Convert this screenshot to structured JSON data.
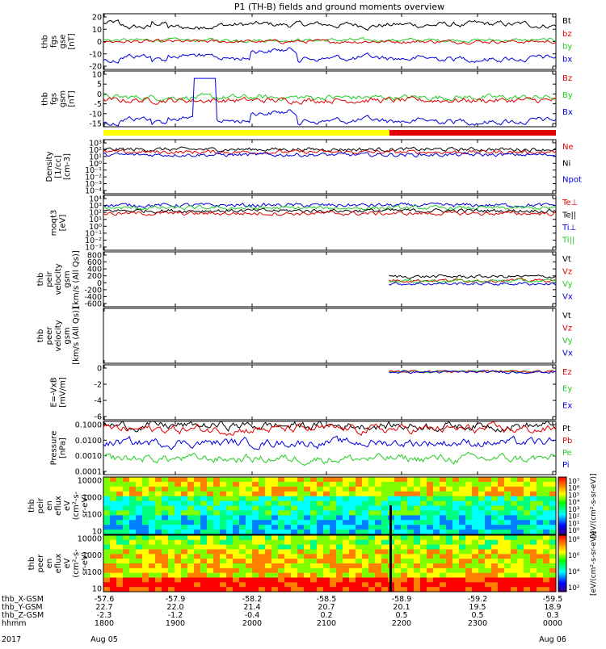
{
  "title": "P1 (TH-B) fields and ground moments overview",
  "colors": {
    "black": "#000000",
    "red": "#e00000",
    "green": "#22cc22",
    "blue": "#0000dd",
    "yellow": "#ffff00"
  },
  "chart_data": {
    "type": "line",
    "time_ticks": [
      "1800",
      "1900",
      "2000",
      "2100",
      "2200",
      "2300",
      "0000"
    ],
    "date_labels": [
      "Aug 05",
      "Aug 06"
    ],
    "year": "2017",
    "orbit_table": {
      "rows": [
        {
          "label": "thb_X-GSM",
          "values": [
            "-57.6",
            "-57.9",
            "-58.2",
            "-58.5",
            "-58.9",
            "-59.2",
            "-59.5"
          ]
        },
        {
          "label": "thb_Y-GSM",
          "values": [
            "22.7",
            "22.0",
            "21.4",
            "20.7",
            "20.1",
            "19.5",
            "18.9"
          ]
        },
        {
          "label": "thb_Z-GSM",
          "values": [
            "-2.3",
            "-1.2",
            "-0.4",
            "0.2",
            "0.5",
            "0.5",
            "0.3"
          ]
        },
        {
          "label": "hhmm",
          "values": [
            "1800",
            "1900",
            "2000",
            "2100",
            "2200",
            "2300",
            "0000"
          ]
        }
      ]
    },
    "panels": [
      {
        "id": "fgs-gse",
        "ylabel": [
          "thb",
          "fgs",
          "gse",
          "[nT]"
        ],
        "yticks": [
          "20",
          "10",
          "0",
          "-10",
          "-20"
        ],
        "ylim": [
          -20,
          20
        ],
        "legend": [
          {
            "name": "Bt",
            "color": "black"
          },
          {
            "name": "bz",
            "color": "red"
          },
          {
            "name": "by",
            "color": "green"
          },
          {
            "name": "bx",
            "color": "blue"
          }
        ]
      },
      {
        "id": "fgs-gsm",
        "ylabel": [
          "thb",
          "fgs",
          "gsm",
          "[nT]"
        ],
        "yticks": [
          "10",
          "5",
          "0",
          "-5",
          "-10",
          "-15"
        ],
        "ylim": [
          -18,
          20
        ],
        "legend": [
          {
            "name": "Bz",
            "color": "red"
          },
          {
            "name": "By",
            "color": "green"
          },
          {
            "name": "Bx",
            "color": "blue"
          }
        ]
      },
      {
        "id": "density",
        "ylabel": [
          "Density",
          "[1/cc]",
          "[cm-3]"
        ],
        "yticks": [
          "10³",
          "10²",
          "10¹",
          "10⁰",
          "10⁻¹",
          "10⁻²",
          "10⁻³",
          "10⁻⁴"
        ],
        "legend": [
          {
            "name": "Ne",
            "color": "red"
          },
          {
            "name": "Ni",
            "color": "black"
          },
          {
            "name": "Npot",
            "color": "blue"
          }
        ]
      },
      {
        "id": "temperature",
        "ylabel": [
          "moqt3",
          "[eV]"
        ],
        "yticks": [
          "10⁴",
          "10³",
          "10²",
          "10¹",
          "10⁰",
          "10⁻¹",
          "10⁻²",
          "10⁻³"
        ],
        "legend": [
          {
            "name": "Te⊥",
            "color": "red"
          },
          {
            "name": "Te||",
            "color": "black"
          },
          {
            "name": "Ti⊥",
            "color": "blue"
          },
          {
            "name": "Ti||",
            "color": "green"
          }
        ]
      },
      {
        "id": "peir-velocity",
        "ylabel": [
          "thb",
          "peir",
          "velocity",
          "gsm",
          "[km/s (All Qs)]"
        ],
        "yticks": [
          "800",
          "600",
          "400",
          "200",
          "0",
          "-200",
          "-400",
          "-600"
        ],
        "ylim": [
          -600,
          800
        ],
        "legend": [
          {
            "name": "Vt",
            "color": "black"
          },
          {
            "name": "Vz",
            "color": "red"
          },
          {
            "name": "Vy",
            "color": "green"
          },
          {
            "name": "Vx",
            "color": "blue"
          }
        ]
      },
      {
        "id": "peer-velocity",
        "ylabel": [
          "thb",
          "peer",
          "velocity",
          "gsm",
          "[km/s (All Qs)]"
        ],
        "yticks": [],
        "legend": [
          {
            "name": "Vt",
            "color": "black"
          },
          {
            "name": "Vz",
            "color": "red"
          },
          {
            "name": "Vy",
            "color": "green"
          },
          {
            "name": "Vx",
            "color": "blue"
          }
        ]
      },
      {
        "id": "efield",
        "ylabel": [
          "E=-VxB",
          "[mV/m]"
        ],
        "yticks": [
          "0",
          "-2",
          "-4",
          "-6"
        ],
        "ylim": [
          -7,
          1.5
        ],
        "legend": [
          {
            "name": "Ez",
            "color": "red"
          },
          {
            "name": "Ey",
            "color": "green"
          },
          {
            "name": "Ex",
            "color": "blue"
          }
        ]
      },
      {
        "id": "pressure",
        "ylabel": [
          "Pressure",
          "[nPa]"
        ],
        "yticks": [
          "0.1000",
          "0.0100",
          "0.0010",
          "0.0001"
        ],
        "legend": [
          {
            "name": "Pt",
            "color": "black"
          },
          {
            "name": "Pb",
            "color": "red"
          },
          {
            "name": "Pe",
            "color": "green"
          },
          {
            "name": "Pi",
            "color": "blue"
          }
        ]
      },
      {
        "id": "peir-spec",
        "ylabel": [
          "thb",
          "peir",
          "en",
          "eflux",
          "eV",
          "(cm²-s-",
          "sr-eV)"
        ],
        "yticks": [
          "10000",
          "1000",
          "100",
          "10"
        ],
        "colorbar": {
          "ticks": [
            "10⁷",
            "10⁶",
            "10⁵",
            "10⁴",
            "10³",
            "10²",
            "10¹",
            "10⁰"
          ],
          "label": "[eV/(cm²-s-sr-eV)]"
        }
      },
      {
        "id": "peer-spec",
        "ylabel": [
          "thb",
          "peer",
          "en",
          "eflux",
          "eV",
          "(cm²-s-",
          "sr-eV)"
        ],
        "yticks": [
          "10000",
          "1000",
          "100",
          "10"
        ],
        "colorbar": {
          "ticks": [
            "10⁸",
            "10⁶",
            "10⁴",
            "10²"
          ],
          "label": "[eV/(cm²-s-sr-eV)]"
        }
      }
    ]
  }
}
